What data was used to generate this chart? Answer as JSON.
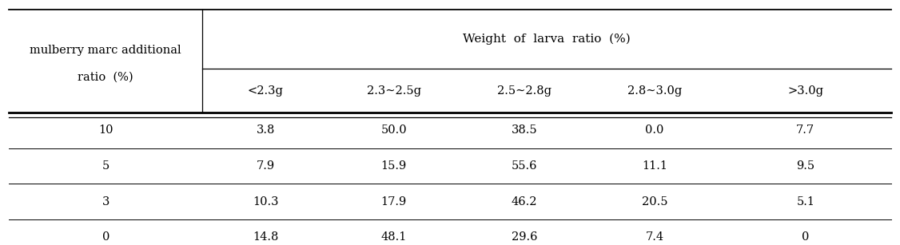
{
  "col_header_top": "Weight  of  larva  ratio  (%)",
  "col_header_sub": [
    "<2.3g",
    "2.3∼2.5g",
    "2.5∼2.8g",
    "2.8∼3.0g",
    ">3.0g"
  ],
  "row_header_label_line1": "mulberry marc additional",
  "row_header_label_line2": "ratio  (%)",
  "rows": [
    {
      "ratio": "10",
      "values": [
        "3.8",
        "50.0",
        "38.5",
        "0.0",
        "7.7"
      ]
    },
    {
      "ratio": "5",
      "values": [
        "7.9",
        "15.9",
        "55.6",
        "11.1",
        "9.5"
      ]
    },
    {
      "ratio": "3",
      "values": [
        "10.3",
        "17.9",
        "46.2",
        "20.5",
        "5.1"
      ]
    },
    {
      "ratio": "0",
      "values": [
        "14.8",
        "48.1",
        "29.6",
        "7.4",
        "0"
      ]
    }
  ],
  "bg_color": "#ffffff",
  "text_color": "#000000",
  "font_size": 10.5,
  "header_font_size": 11
}
